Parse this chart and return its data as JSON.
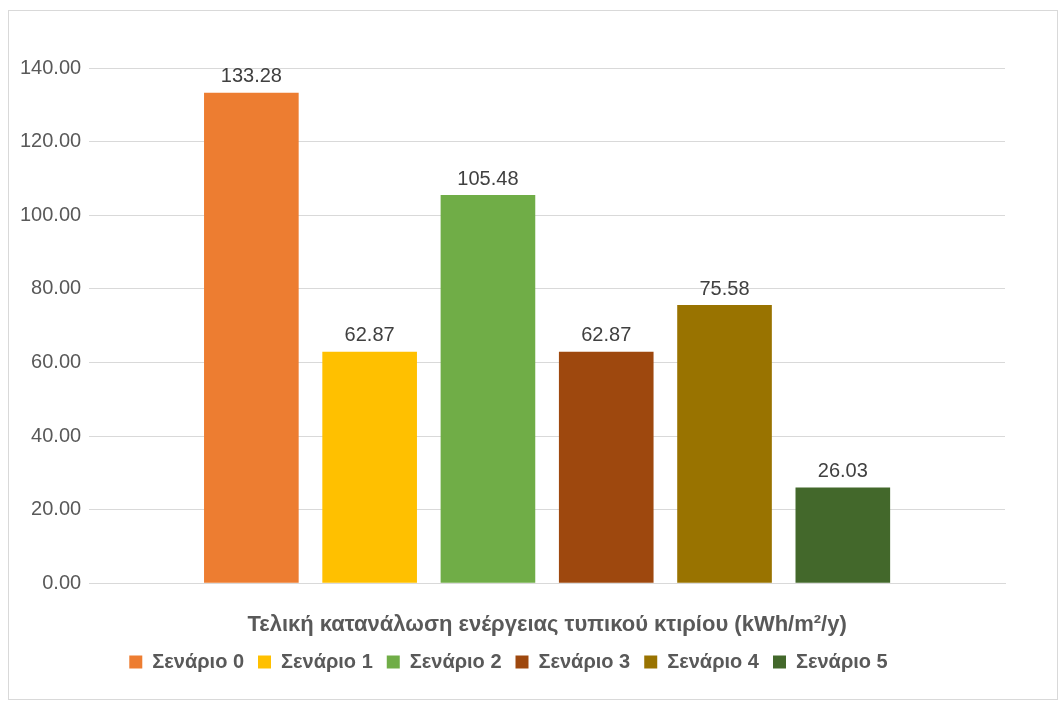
{
  "chart_data": {
    "type": "bar",
    "xlabel": "Τελική κατανάλωση ενέργειας τυπικού κτιρίου (kWh/m²/y)",
    "categories": [
      null
    ],
    "series": [
      {
        "name": "Σενάριο 0",
        "color": "#ed7d31",
        "values": [
          133.28
        ]
      },
      {
        "name": "Σενάριο 1",
        "color": "#ffc000",
        "values": [
          62.87
        ]
      },
      {
        "name": "Σενάριο 2",
        "color": "#70ad47",
        "values": [
          105.48
        ]
      },
      {
        "name": "Σενάριο 3",
        "color": "#9e480e",
        "values": [
          62.87
        ]
      },
      {
        "name": "Σενάριο 4",
        "color": "#997300",
        "values": [
          75.58
        ]
      },
      {
        "name": "Σενάριο 5",
        "color": "#43682b",
        "values": [
          26.03
        ]
      }
    ],
    "ylim": [
      0,
      140
    ],
    "yticks": [
      {
        "value": 0,
        "label": "0.00"
      },
      {
        "value": 20,
        "label": "20.00"
      },
      {
        "value": 40,
        "label": "40.00"
      },
      {
        "value": 60,
        "label": "60.00"
      },
      {
        "value": 80,
        "label": "80.00"
      },
      {
        "value": 100,
        "label": "100.00"
      },
      {
        "value": 120,
        "label": "120.00"
      },
      {
        "value": 140,
        "label": "140.00"
      }
    ],
    "grid": "y",
    "legend": "bottom",
    "data_labels": true
  }
}
